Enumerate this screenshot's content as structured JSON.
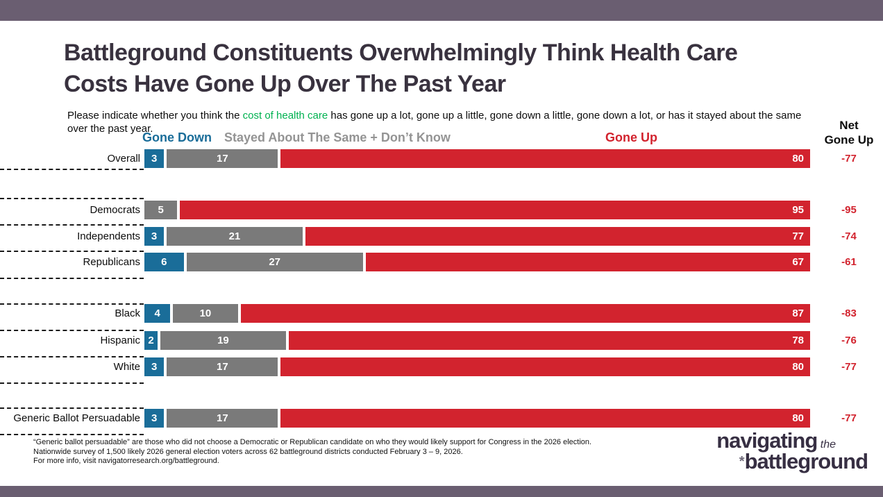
{
  "title": {
    "line1": "Battleground Constituents Overwhelmingly Think Health Care",
    "line2": "Costs Have Gone Up Over The Past Year"
  },
  "subtitle": {
    "pre": "Please indicate whether you think the ",
    "highlight": "cost of health care",
    "post": " has gone up a lot, gone up a little, gone down a little, gone down a lot, or has it stayed about the same over the past year."
  },
  "legend": {
    "gone_down": "Gone Down",
    "stayed": "Stayed About The Same + Don’t Know",
    "gone_up": "Gone Up",
    "net_line1": "Net",
    "net_line2": "Gone Up"
  },
  "chart_data": {
    "type": "bar",
    "orientation": "horizontal",
    "stacked": true,
    "xlim": [
      0,
      100
    ],
    "categories": [
      "Overall",
      "Democrats",
      "Independents",
      "Republicans",
      "Black",
      "Hispanic",
      "White",
      "Generic Ballot Persuadable"
    ],
    "series": [
      {
        "name": "Gone Down",
        "color": "#1a6d99",
        "values": [
          3,
          0,
          3,
          6,
          4,
          2,
          3,
          3
        ]
      },
      {
        "name": "Stayed About The Same + Don't Know",
        "color": "#7a7a7a",
        "values": [
          17,
          5,
          21,
          27,
          10,
          19,
          17,
          17
        ]
      },
      {
        "name": "Gone Up",
        "color": "#d2232e",
        "values": [
          80,
          95,
          77,
          67,
          87,
          78,
          80,
          80
        ]
      }
    ],
    "net_gone_up": [
      -77,
      -95,
      -74,
      -61,
      -83,
      -76,
      -77,
      -77
    ],
    "value_labels": "inside segments, zero values hidden",
    "groups": [
      [
        "Overall"
      ],
      [
        "Democrats",
        "Independents",
        "Republicans"
      ],
      [
        "Black",
        "Hispanic",
        "White"
      ],
      [
        "Generic Ballot Persuadable"
      ]
    ]
  },
  "footnotes": [
    "“Generic ballot persuadable” are those who did not choose a Democratic or Republican candidate on who they would likely support for Congress in the 2026 election.",
    "Nationwide survey of 1,500 likely 2026 general election voters across 62 battleground districts conducted February 3 – 9, 2026.",
    "For more info, visit navigatorresearch.org/battleground."
  ],
  "logo": {
    "word1": "navigating",
    "word2": "the",
    "asterisk": "*",
    "word3": "battleground"
  },
  "colors": {
    "top_bar": "#6a5e71",
    "bottom_bar": "#6a5e71",
    "title_text": "#39323f",
    "highlight_green": "#00b150",
    "gone_down_blue": "#1a6d99",
    "stayed_gray": "#7a7a7a",
    "gone_up_red": "#d2232e",
    "legend_gray_text": "#949494",
    "net_value_red": "#d2232e"
  }
}
